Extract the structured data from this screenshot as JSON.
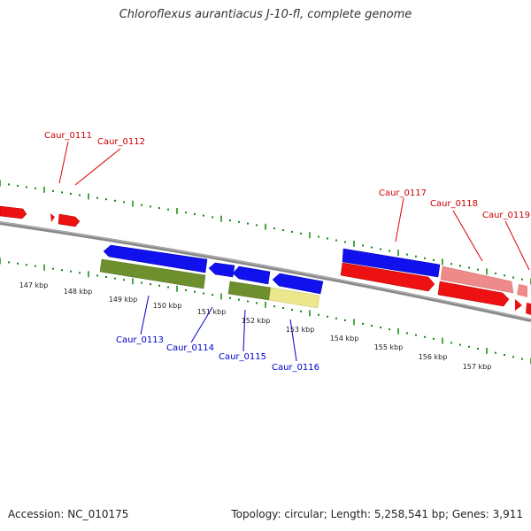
{
  "title": "Chloroflexus aurantiacus J-10-fl, complete genome",
  "accession_text": "Accession: NC_010175",
  "summary_text": "Topology: circular; Length: 5,258,541 bp; Genes: 3,911",
  "colors": {
    "forward": "#ff0000",
    "forward_light": "#ee8a8a",
    "reverse": "#0000ee",
    "reverse_label": "#0000cc",
    "forward_label": "#cc0000",
    "green": "#6e8f2e",
    "yellow": "#ece68c",
    "tick": "#118811",
    "backbone": "#888888"
  },
  "scale_labels": [
    "147 kbp",
    "148 kbp",
    "149 kbp",
    "150 kbp",
    "151 kbp",
    "152 kbp",
    "153 kbp",
    "154 kbp",
    "155 kbp",
    "156 kbp",
    "157 kbp"
  ],
  "gene_labels": {
    "forward": [
      "Caur_0111",
      "Caur_0112",
      "Caur_0117",
      "Caur_0118",
      "Caur_0119"
    ],
    "reverse": [
      "Caur_0113",
      "Caur_0114",
      "Caur_0115",
      "Caur_0116"
    ]
  }
}
